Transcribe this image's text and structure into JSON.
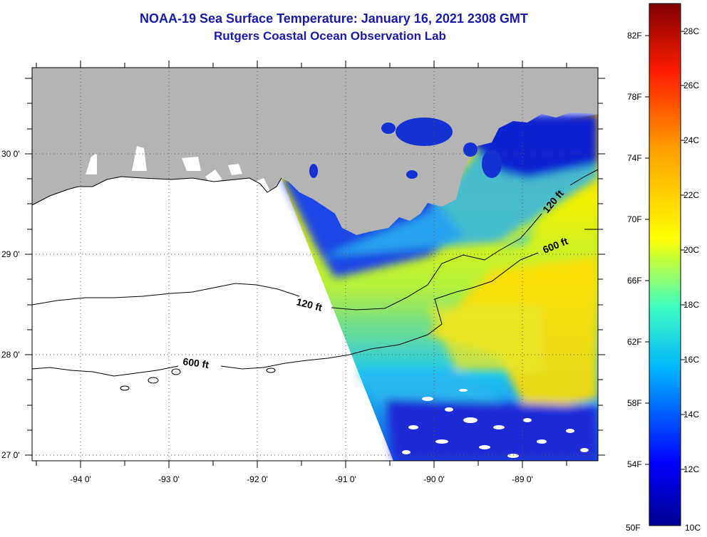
{
  "header": {
    "title": "NOAA-19 Sea Surface Temperature:  January 16, 2021 2308 GMT",
    "subtitle": "Rutgers Coastal Ocean Observation Lab"
  },
  "axes": {
    "lat_labels": [
      "30 0'",
      "29 0'",
      "28 0'",
      "27 0'"
    ],
    "lon_labels": [
      "-94 0'",
      "-93 0'",
      "-92 0'",
      "-91 0'",
      "-90 0'",
      "-89 0'"
    ]
  },
  "contours": {
    "shelf_120": "120 ft",
    "slope_600": "600 ft"
  },
  "colorbar": {
    "fahrenheit_labels": [
      "82F",
      "78F",
      "74F",
      "70F",
      "66F",
      "62F",
      "58F",
      "54F",
      "50F"
    ],
    "celsius_labels": [
      "28C",
      "26C",
      "24C",
      "22C",
      "20C",
      "18C",
      "16C",
      "14C",
      "12C",
      "10C"
    ],
    "min_c": 10,
    "max_c": 29.4,
    "colormap": [
      "#00008f",
      "#0000ff",
      "#00b4ff",
      "#3fffbf",
      "#ffff00",
      "#ffa000",
      "#ff1c00",
      "#800000"
    ]
  },
  "colors": {
    "land": "#b4b4b4",
    "title": "#1a1aa6"
  }
}
